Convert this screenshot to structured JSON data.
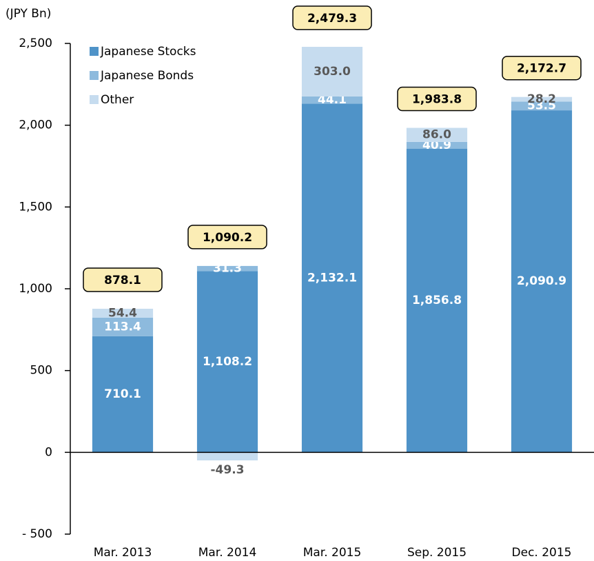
{
  "chart_data": {
    "type": "stacked_bar",
    "y_unit_label": "(JPY Bn)",
    "categories": [
      "Mar. 2013",
      "Mar. 2014",
      "Mar. 2015",
      "Sep. 2015",
      "Dec. 2015"
    ],
    "series": [
      {
        "name": "Japanese Stocks",
        "color": "#4f93c8",
        "label_color": "#ffffff",
        "values": [
          710.1,
          1108.2,
          2132.1,
          1856.8,
          2090.9
        ],
        "value_labels": [
          "710.1",
          "1,108.2",
          "2,132.1",
          "1,856.8",
          "2,090.9"
        ]
      },
      {
        "name": "Japanese Bonds",
        "color": "#8dbadd",
        "label_color": "#ffffff",
        "values": [
          113.4,
          31.3,
          44.1,
          40.9,
          53.5
        ],
        "value_labels": [
          "113.4",
          "31.3",
          "44.1",
          "40.9",
          "53.5"
        ]
      },
      {
        "name": "Other",
        "color": "#c6dcef",
        "label_color": "#595959",
        "values": [
          54.4,
          -49.3,
          303.0,
          86.0,
          28.2
        ],
        "value_labels": [
          "54.4",
          "-49.3",
          "303.0",
          "86.0",
          "28.2"
        ]
      }
    ],
    "totals": {
      "values": [
        878.1,
        1090.2,
        2479.3,
        1983.8,
        2172.7
      ],
      "value_labels": [
        "878.1",
        "1,090.2",
        "2,479.3",
        "1,983.8",
        "2,172.7"
      ],
      "color": "#fbedb5"
    },
    "ylim": [
      -500,
      2500
    ],
    "yticks": [
      {
        "value": -500,
        "label": "- 500"
      },
      0,
      500,
      {
        "value": 1000,
        "label": "1,000"
      },
      {
        "value": 1500,
        "label": "1,500"
      },
      {
        "value": 2000,
        "label": "2,000"
      },
      {
        "value": 2500,
        "label": "2,500"
      }
    ],
    "legend": "upper left"
  }
}
